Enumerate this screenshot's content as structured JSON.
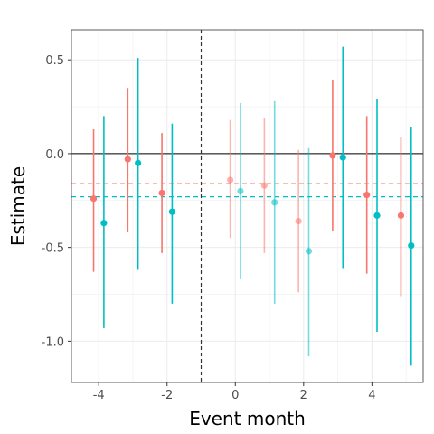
{
  "chart_data": {
    "type": "scatter",
    "subtype": "event-study coefficient plot with error bars",
    "xlabel": "Event month",
    "ylabel": "Estimate",
    "xlim": [
      -4.8,
      5.5
    ],
    "ylim": [
      -1.22,
      0.66
    ],
    "x_ticks": [
      -4,
      -2,
      0,
      2,
      4
    ],
    "x_tick_labels": [
      "-4",
      "-2",
      "0",
      "2",
      "4"
    ],
    "y_ticks": [
      0.5,
      0.0,
      -0.5,
      -1.0
    ],
    "y_tick_labels": [
      "0.5",
      "0.0",
      "-0.5",
      "-1.0"
    ],
    "grid": true,
    "legend": "none",
    "reference_lines": {
      "horizontal_zero": 0.0,
      "vertical_dashed_x": -1,
      "series_mean_dashed": [
        -0.16,
        -0.23
      ]
    },
    "colors": {
      "series1": "#F8766D",
      "series2": "#00BFC4",
      "axis": "#000000",
      "grid": "#ebebeb"
    },
    "series": [
      {
        "color": "#F8766D",
        "points": [
          {
            "x": -4.15,
            "y": -0.24,
            "lo": -0.63,
            "hi": 0.13,
            "faded": false
          },
          {
            "x": -3.15,
            "y": -0.03,
            "lo": -0.42,
            "hi": 0.35,
            "faded": false
          },
          {
            "x": -2.15,
            "y": -0.21,
            "lo": -0.53,
            "hi": 0.11,
            "faded": false
          },
          {
            "x": -0.15,
            "y": -0.14,
            "lo": -0.45,
            "hi": 0.18,
            "faded": true
          },
          {
            "x": 0.85,
            "y": -0.17,
            "lo": -0.53,
            "hi": 0.19,
            "faded": true
          },
          {
            "x": 1.85,
            "y": -0.36,
            "lo": -0.74,
            "hi": 0.02,
            "faded": true
          },
          {
            "x": 2.85,
            "y": -0.01,
            "lo": -0.41,
            "hi": 0.39,
            "faded": false
          },
          {
            "x": 3.85,
            "y": -0.22,
            "lo": -0.64,
            "hi": 0.2,
            "faded": false
          },
          {
            "x": 4.85,
            "y": -0.33,
            "lo": -0.76,
            "hi": 0.09,
            "faded": false
          }
        ]
      },
      {
        "color": "#00BFC4",
        "points": [
          {
            "x": -3.85,
            "y": -0.37,
            "lo": -0.93,
            "hi": 0.2,
            "faded": false
          },
          {
            "x": -2.85,
            "y": -0.05,
            "lo": -0.62,
            "hi": 0.51,
            "faded": false
          },
          {
            "x": -1.85,
            "y": -0.31,
            "lo": -0.8,
            "hi": 0.16,
            "faded": false
          },
          {
            "x": 0.15,
            "y": -0.2,
            "lo": -0.67,
            "hi": 0.27,
            "faded": true
          },
          {
            "x": 1.15,
            "y": -0.26,
            "lo": -0.8,
            "hi": 0.28,
            "faded": true
          },
          {
            "x": 2.15,
            "y": -0.52,
            "lo": -1.08,
            "hi": 0.03,
            "faded": true
          },
          {
            "x": 3.15,
            "y": -0.02,
            "lo": -0.61,
            "hi": 0.57,
            "faded": false
          },
          {
            "x": 4.15,
            "y": -0.33,
            "lo": -0.95,
            "hi": 0.29,
            "faded": false
          },
          {
            "x": 5.15,
            "y": -0.49,
            "lo": -1.13,
            "hi": 0.14,
            "faded": false
          }
        ]
      }
    ]
  }
}
